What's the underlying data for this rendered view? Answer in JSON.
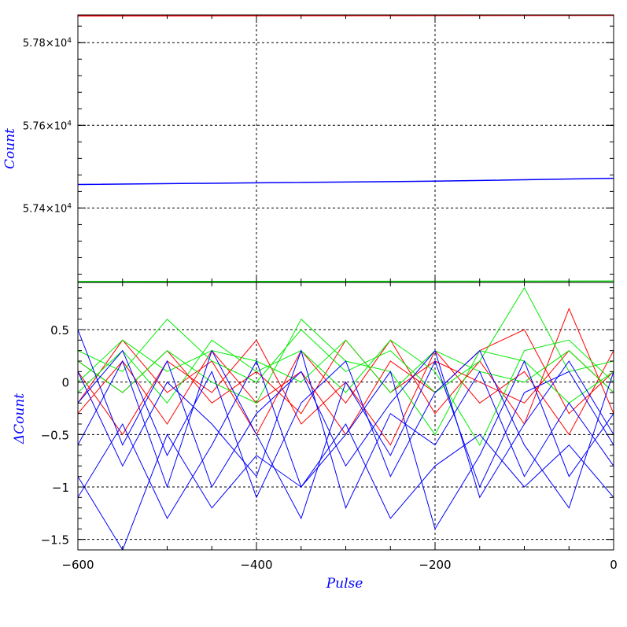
{
  "chart_data": [
    {
      "type": "line",
      "ylabel": "Count",
      "xlim": [
        -600,
        0
      ],
      "ylim": [
        57220,
        57867
      ],
      "grid": true,
      "yticks": [
        57400,
        57600,
        57800
      ],
      "ytick_labels": [
        {
          "mantissa": "5.74×10",
          "exp": "4"
        },
        {
          "mantissa": "5.76×10",
          "exp": "4"
        },
        {
          "mantissa": "5.78×10",
          "exp": "4"
        }
      ],
      "series": [
        {
          "color": "#ff0000",
          "x": [
            -600,
            0
          ],
          "y": [
            57865,
            57866
          ]
        },
        {
          "color": "#0000ff",
          "x": [
            -600,
            -400,
            -200,
            0
          ],
          "y": [
            57457,
            57461,
            57465,
            57472
          ]
        },
        {
          "color": "#00cc00",
          "x": [
            -600,
            0
          ],
          "y": [
            57222,
            57223
          ]
        }
      ]
    },
    {
      "type": "line",
      "xlabel": "Pulse",
      "ylabel": "ΔCount",
      "xlim": [
        -600,
        0
      ],
      "ylim": [
        -1.6,
        0.95
      ],
      "grid": true,
      "xticks": [
        -600,
        -400,
        -200,
        0
      ],
      "xtick_labels": [
        "−600",
        "−400",
        "−200",
        "0"
      ],
      "yticks": [
        -1.5,
        -1,
        -0.5,
        0,
        0.5
      ],
      "ytick_labels": [
        "−1.5",
        "−1",
        "−0.5",
        "0",
        "0.5"
      ],
      "series": [
        {
          "color": "#ff0000",
          "x": [
            -600,
            -550,
            -500,
            -450,
            -400,
            -350,
            -300,
            -250,
            -200,
            -150,
            -100,
            -50,
            0
          ],
          "y": [
            0.2,
            -0.1,
            0.3,
            -0.2,
            0.1,
            -0.3,
            0.4,
            -0.1,
            0.2,
            0.0,
            -0.2,
            0.3,
            -0.1
          ]
        },
        {
          "color": "#ff0000",
          "x": [
            -600,
            -550,
            -500,
            -450,
            -400,
            -350,
            -300,
            -250,
            -200,
            -150,
            -100,
            -50,
            0
          ],
          "y": [
            -0.3,
            0.2,
            -0.4,
            0.3,
            -0.2,
            0.1,
            -0.5,
            0.2,
            -0.1,
            0.3,
            0.5,
            -0.3,
            0.1
          ]
        },
        {
          "color": "#ff0000",
          "x": [
            -600,
            -550,
            -500,
            -450,
            -400,
            -350,
            -300,
            -250,
            -200,
            -150,
            -100,
            -50,
            0
          ],
          "y": [
            0.1,
            -0.5,
            0.2,
            -0.1,
            0.4,
            -0.4,
            0.0,
            -0.6,
            0.3,
            -0.2,
            0.1,
            -0.5,
            0.3
          ]
        },
        {
          "color": "#ff0000",
          "x": [
            -600,
            -550,
            -500,
            -450,
            -400,
            -350,
            -300,
            -250,
            -200,
            -150,
            -100,
            -50,
            0
          ],
          "y": [
            -0.2,
            0.4,
            -0.1,
            0.2,
            -0.5,
            0.3,
            -0.2,
            0.4,
            -0.3,
            0.2,
            -0.4,
            0.7,
            -0.3
          ]
        },
        {
          "color": "#00ee00",
          "x": [
            -600,
            -550,
            -500,
            -450,
            -400,
            -350,
            -300,
            -250,
            -200,
            -150,
            -100,
            -50,
            0
          ],
          "y": [
            0.3,
            0.1,
            0.6,
            0.2,
            0.0,
            0.5,
            0.1,
            0.3,
            -0.1,
            0.2,
            0.9,
            0.1,
            0.2
          ]
        },
        {
          "color": "#00ee00",
          "x": [
            -600,
            -550,
            -500,
            -450,
            -400,
            -350,
            -300,
            -250,
            -200,
            -150,
            -100,
            -50,
            0
          ],
          "y": [
            0.0,
            0.4,
            0.1,
            0.3,
            0.2,
            0.0,
            0.4,
            -0.1,
            0.3,
            0.1,
            0.0,
            0.3,
            -0.1
          ]
        },
        {
          "color": "#00ee00",
          "x": [
            -600,
            -550,
            -500,
            -450,
            -400,
            -350,
            -300,
            -250,
            -200,
            -150,
            -100,
            -50,
            0
          ],
          "y": [
            0.2,
            -0.1,
            0.3,
            0.0,
            -0.2,
            0.6,
            0.2,
            0.1,
            -0.5,
            0.3,
            0.2,
            -0.2,
            0.1
          ]
        },
        {
          "color": "#00ee00",
          "x": [
            -600,
            -550,
            -500,
            -450,
            -400,
            -350,
            -300,
            -250,
            -200,
            -150,
            -100,
            -50,
            0
          ],
          "y": [
            -0.1,
            0.3,
            -0.2,
            0.4,
            0.1,
            0.3,
            -0.1,
            0.4,
            0.1,
            -0.6,
            0.3,
            0.4,
            0.0
          ]
        },
        {
          "color": "#0000ff",
          "x": [
            -600,
            -550,
            -500,
            -450,
            -400,
            -350,
            -300,
            -250,
            -200,
            -150,
            -100,
            -50,
            0
          ],
          "y": [
            0.5,
            -0.6,
            0.2,
            -1.0,
            -0.3,
            0.1,
            -0.8,
            -0.2,
            0.3,
            -1.1,
            -0.4,
            0.2,
            -0.5
          ]
        },
        {
          "color": "#0000ff",
          "x": [
            -600,
            -550,
            -500,
            -450,
            -400,
            -350,
            -300,
            -250,
            -200,
            -150,
            -100,
            -50,
            0
          ],
          "y": [
            -0.9,
            -1.6,
            -0.5,
            -1.2,
            -0.7,
            -1.0,
            -0.4,
            -1.3,
            -0.8,
            -0.5,
            -1.0,
            -0.6,
            -1.1
          ]
        },
        {
          "color": "#0000ff",
          "x": [
            -600,
            -550,
            -500,
            -450,
            -400,
            -350,
            -300,
            -250,
            -200,
            -150,
            -100,
            -50,
            0
          ],
          "y": [
            -0.2,
            0.3,
            -0.7,
            0.1,
            -1.1,
            -0.2,
            0.2,
            -0.9,
            -0.1,
            0.3,
            -0.6,
            -1.2,
            0.1
          ]
        },
        {
          "color": "#0000ff",
          "x": [
            -600,
            -550,
            -500,
            -450,
            -400,
            -350,
            -300,
            -250,
            -200,
            -150,
            -100,
            -50,
            0
          ],
          "y": [
            -1.1,
            -0.4,
            -1.3,
            -0.6,
            0.2,
            -1.0,
            -0.5,
            0.1,
            -1.4,
            -0.7,
            0.2,
            -0.9,
            -0.3
          ]
        },
        {
          "color": "#0000ff",
          "x": [
            -600,
            -550,
            -500,
            -450,
            -400,
            -350,
            -300,
            -250,
            -200,
            -150,
            -100,
            -50,
            0
          ],
          "y": [
            0.1,
            -0.8,
            0.0,
            -0.4,
            -0.9,
            0.3,
            -1.2,
            -0.3,
            -0.6,
            0.1,
            -0.9,
            -0.2,
            -0.8
          ]
        },
        {
          "color": "#0000ff",
          "x": [
            -600,
            -550,
            -500,
            -450,
            -400,
            -350,
            -300,
            -250,
            -200,
            -150,
            -100,
            -50,
            0
          ],
          "y": [
            -0.6,
            0.2,
            -1.0,
            0.3,
            -0.5,
            -1.3,
            0.0,
            -0.7,
            0.2,
            -1.0,
            -0.1,
            0.1,
            -0.6
          ]
        }
      ]
    }
  ]
}
